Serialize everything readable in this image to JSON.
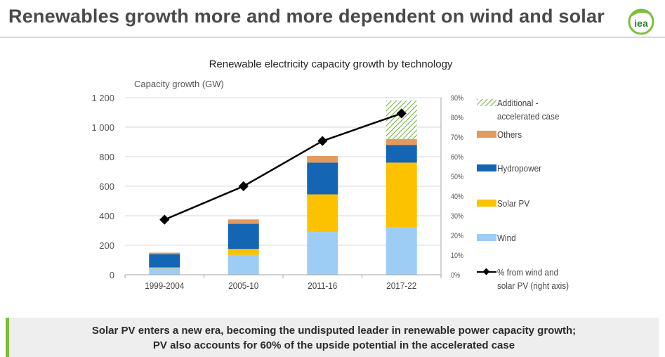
{
  "header": {
    "title": "Renewables growth more and more dependent on wind and solar",
    "logo_text": "iea"
  },
  "chart_data": {
    "type": "bar",
    "stacked": true,
    "title": "Renewable electricity capacity growth by technology",
    "ylabel": "Capacity growth (GW)",
    "categories": [
      "1999-2004",
      "2005-10",
      "2011-16",
      "2017-22"
    ],
    "ylim": [
      0,
      1200
    ],
    "yticks": [
      0,
      200,
      400,
      600,
      800,
      1000,
      1200
    ],
    "ytick_labels": [
      "0",
      "200",
      "400",
      "600",
      "800",
      "1 000",
      "1 200"
    ],
    "y2lim": [
      0,
      90
    ],
    "y2ticks": [
      0,
      10,
      20,
      30,
      40,
      50,
      60,
      70,
      80,
      90
    ],
    "y2tick_labels": [
      "0%",
      "10%",
      "20%",
      "30%",
      "40%",
      "50%",
      "60%",
      "70%",
      "80%",
      "90%"
    ],
    "series": [
      {
        "name": "Wind",
        "color": "#9dcdf4",
        "values": [
          45,
          135,
          290,
          320
        ]
      },
      {
        "name": "Solar PV",
        "color": "#fcc200",
        "values": [
          5,
          40,
          255,
          440
        ]
      },
      {
        "name": "Hydropower",
        "color": "#1465b3",
        "values": [
          90,
          170,
          215,
          120
        ]
      },
      {
        "name": "Others",
        "color": "#e39a5f",
        "values": [
          10,
          30,
          45,
          40
        ]
      },
      {
        "name": "Additional - accelerated case",
        "color": "#76b53f",
        "pattern": "hatch",
        "values": [
          0,
          0,
          0,
          260
        ]
      }
    ],
    "line_series": {
      "name": "% from wind and solar PV (right axis)",
      "axis": "right",
      "color": "#000000",
      "values": [
        28,
        45,
        68,
        82
      ]
    },
    "legend": {
      "placement": "right",
      "order": [
        "Additional - accelerated case",
        "Others",
        "Hydropower",
        "Solar PV",
        "Wind",
        "% from wind and solar PV (right axis)"
      ],
      "labels": [
        [
          "Additional -",
          "accelerated case"
        ],
        [
          "Others"
        ],
        [
          "Hydropower"
        ],
        [
          "Solar PV"
        ],
        [
          "Wind"
        ],
        [
          "% from wind and",
          "solar PV (right axis)"
        ]
      ]
    }
  },
  "footer": {
    "line1": "Solar PV enters a new era, becoming the undisputed leader in renewable power capacity growth;",
    "line2": "PV also accounts for 60% of the upside potential in the accelerated case",
    "accent_color": "#7dbe3a"
  }
}
